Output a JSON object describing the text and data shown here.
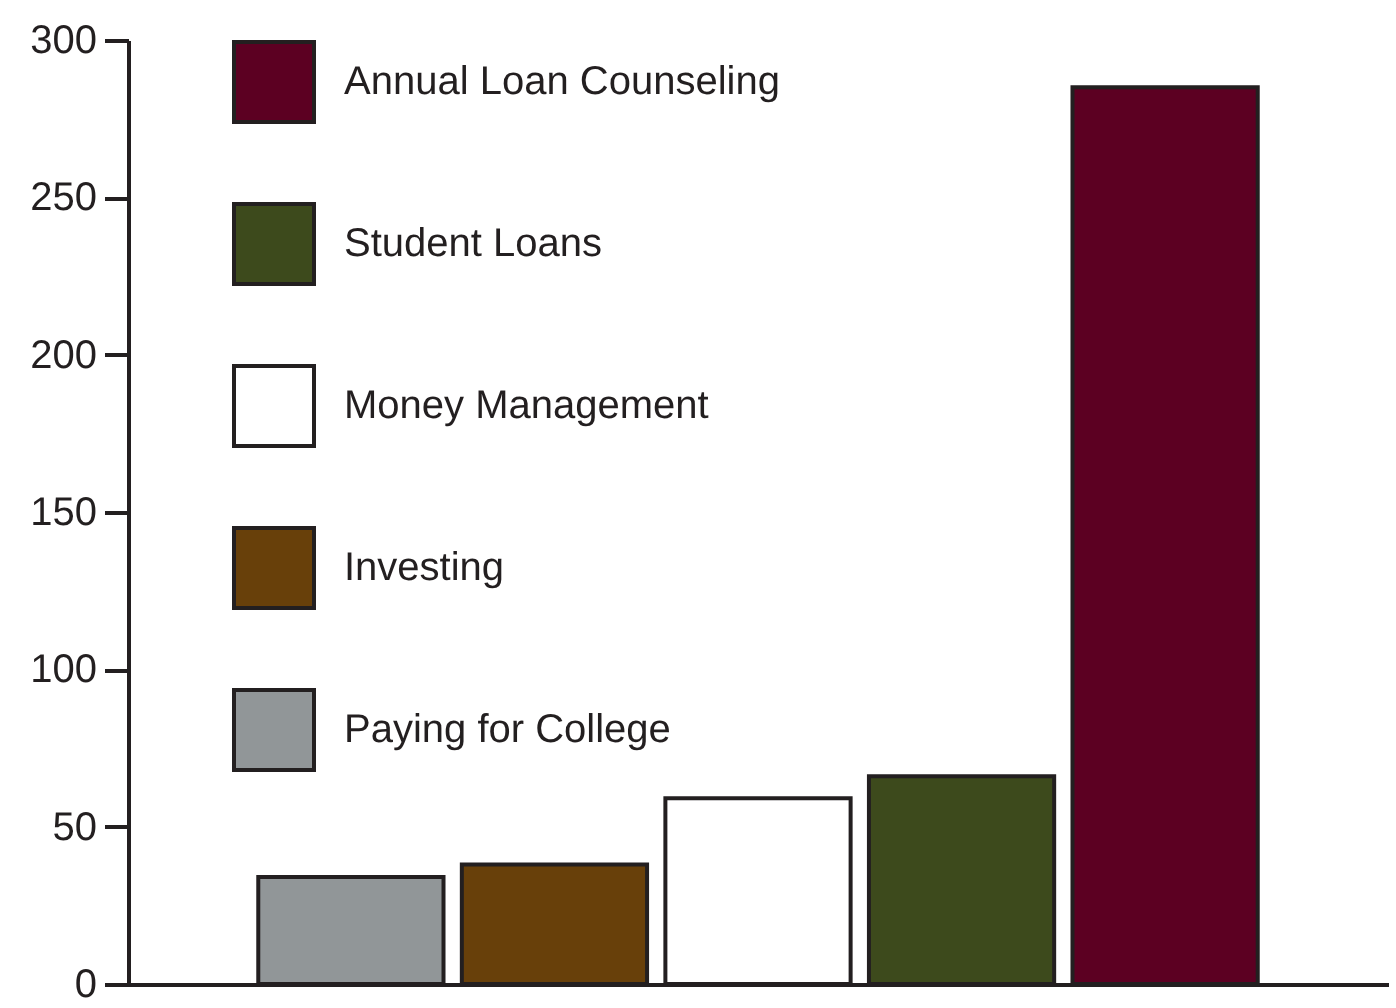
{
  "chart_data": {
    "type": "bar",
    "categories": [
      null,
      null,
      null,
      null,
      null
    ],
    "series": [
      {
        "name": "Annual Loan Counseling",
        "color": "#5c0022",
        "values": [
          null,
          null,
          null,
          null,
          285
        ]
      },
      {
        "name": "Student Loans",
        "color": "#3d4a1c",
        "values": [
          null,
          null,
          null,
          66,
          null
        ]
      },
      {
        "name": "Money Management",
        "color": "#ffffff",
        "values": [
          null,
          null,
          59,
          null,
          null
        ]
      },
      {
        "name": "Investing",
        "color": "#68400a",
        "values": [
          null,
          38,
          null,
          null,
          null
        ]
      },
      {
        "name": "Paying for College",
        "color": "#919698",
        "values": [
          34,
          null,
          null,
          null,
          null
        ]
      }
    ],
    "ylim": [
      0,
      300
    ],
    "yticks": [
      0,
      50,
      100,
      150,
      200,
      250,
      300
    ],
    "tick_labels": "y",
    "grid": false,
    "legend": "top left"
  }
}
